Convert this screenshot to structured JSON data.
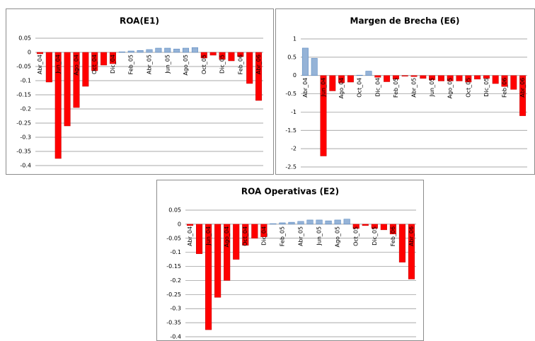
{
  "chart_data": [
    {
      "type": "bar",
      "title": "ROA(E1)",
      "categories": [
        "Abr_04",
        null,
        "Jun_04",
        null,
        "Ago_04",
        null,
        "Oct_04",
        null,
        "Dic_04",
        null,
        "Feb_05",
        null,
        "Abr_05",
        null,
        "Jun_05",
        null,
        "Ago_05",
        null,
        "Oct_05",
        null,
        "Dic_05",
        null,
        "Feb_06",
        null,
        "Abr_06"
      ],
      "values": [
        -0.005,
        -0.105,
        -0.375,
        -0.26,
        -0.195,
        -0.12,
        -0.065,
        -0.045,
        -0.04,
        0.002,
        0.005,
        0.007,
        0.01,
        0.015,
        0.015,
        0.012,
        0.015,
        0.017,
        -0.02,
        -0.01,
        -0.025,
        -0.03,
        -0.015,
        -0.11,
        -0.17
      ],
      "ylim": [
        -0.4,
        0.05
      ],
      "yticks": [
        0.05,
        0,
        -0.05,
        -0.1,
        -0.15,
        -0.2,
        -0.25,
        -0.3,
        -0.35,
        -0.4
      ],
      "positive_color": "#95b3d7",
      "negative_color": "#ff0000",
      "grid": true
    },
    {
      "type": "bar",
      "title": "Margen de Brecha (E6)",
      "categories": [
        "Abr_04",
        null,
        "Jun_04",
        null,
        "Ago_04",
        null,
        "Oct_04",
        null,
        "Dic_04",
        null,
        "Feb_05",
        null,
        "Abr_05",
        null,
        "Jun_05",
        null,
        "Ago_05",
        null,
        "Oct_05",
        null,
        "Dic_05",
        null,
        "Feb_06",
        null,
        "Abr_06"
      ],
      "values": [
        0.75,
        0.47,
        -2.2,
        -0.42,
        -0.2,
        -0.18,
        0.01,
        0.12,
        -0.05,
        -0.17,
        -0.1,
        -0.02,
        -0.03,
        -0.08,
        -0.12,
        -0.15,
        -0.15,
        -0.15,
        -0.18,
        -0.1,
        -0.08,
        -0.22,
        -0.3,
        -0.38,
        -1.1
      ],
      "ylim": [
        -2.5,
        1
      ],
      "yticks": [
        1,
        0.5,
        0,
        -0.5,
        -1,
        -1.5,
        -2,
        -2.5
      ],
      "positive_color": "#95b3d7",
      "negative_color": "#ff0000",
      "grid": true
    },
    {
      "type": "bar",
      "title": "ROA Operativas (E2)",
      "categories": [
        "Abr_04",
        null,
        "Jun_04",
        null,
        "Ago_04",
        null,
        "Oct_04",
        null,
        "Dic_04",
        null,
        "Feb_05",
        null,
        "Abr_05",
        null,
        "Jun_05",
        null,
        "Ago_05",
        null,
        "Oct_05",
        null,
        "Dic_05",
        null,
        "Feb_06",
        null,
        "Abr_06"
      ],
      "values": [
        -0.005,
        -0.105,
        -0.375,
        -0.26,
        -0.2,
        -0.125,
        -0.075,
        -0.05,
        -0.045,
        0.002,
        0.005,
        0.007,
        0.01,
        0.015,
        0.015,
        0.012,
        0.015,
        0.018,
        -0.015,
        -0.005,
        -0.015,
        -0.02,
        -0.035,
        -0.135,
        -0.195
      ],
      "ylim": [
        -0.4,
        0.05
      ],
      "yticks": [
        0.05,
        0,
        -0.05,
        -0.1,
        -0.15,
        -0.2,
        -0.25,
        -0.3,
        -0.35,
        -0.4
      ],
      "positive_color": "#95b3d7",
      "negative_color": "#ff0000",
      "grid": true
    }
  ]
}
